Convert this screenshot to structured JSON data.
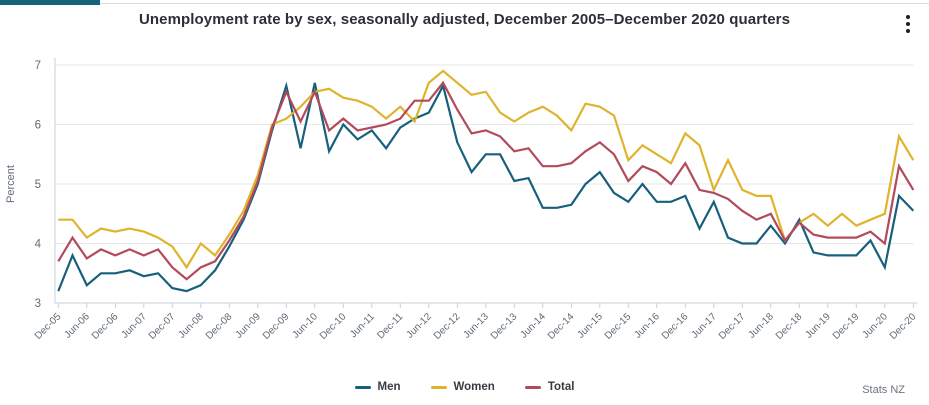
{
  "header": {
    "title": "Unemployment rate by sex, seasonally adjusted, December 2005–December 2020 quarters"
  },
  "branding": {
    "footer_text": "Stats NZ"
  },
  "colors": {
    "accent_bar": "#156378",
    "men_line": "#17607d",
    "women_line": "#e0b32d",
    "total_line": "#b34a5c",
    "gridline": "#e7e7ea",
    "axis_line": "#c7d0dd",
    "tick_label": "#5f6a76",
    "title_text": "#2e2e38"
  },
  "chart_data": {
    "type": "line",
    "title": "Unemployment rate by sex, seasonally adjusted, December 2005–December 2020 quarters",
    "xlabel": "",
    "ylabel": "Percent",
    "ylim": [
      3,
      7
    ],
    "yticks": [
      3,
      4,
      5,
      6,
      7
    ],
    "grid": "horizontal",
    "legend_position": "bottom",
    "tick_every": 2,
    "x_tick_labels": [
      "Dec-05",
      "Jun-06",
      "Dec-06",
      "Jun-07",
      "Dec-07",
      "Jun-08",
      "Dec-08",
      "Jun-09",
      "Dec-09",
      "Jun-10",
      "Dec-10",
      "Jun-11",
      "Dec-11",
      "Jun-12",
      "Dec-12",
      "Jun-13",
      "Dec-13",
      "Jun-14",
      "Dec-14",
      "Jun-15",
      "Dec-15",
      "Jun-16",
      "Dec-16",
      "Jun-17",
      "Dec-17",
      "Jun-18",
      "Dec-18",
      "Jun-19",
      "Dec-19",
      "Jun-20",
      "Dec-20"
    ],
    "categories": [
      "Dec-05",
      "Mar-06",
      "Jun-06",
      "Sep-06",
      "Dec-06",
      "Mar-07",
      "Jun-07",
      "Sep-07",
      "Dec-07",
      "Mar-08",
      "Jun-08",
      "Sep-08",
      "Dec-08",
      "Mar-09",
      "Jun-09",
      "Sep-09",
      "Dec-09",
      "Mar-10",
      "Jun-10",
      "Sep-10",
      "Dec-10",
      "Mar-11",
      "Jun-11",
      "Sep-11",
      "Dec-11",
      "Mar-12",
      "Jun-12",
      "Sep-12",
      "Dec-12",
      "Mar-13",
      "Jun-13",
      "Sep-13",
      "Dec-13",
      "Mar-14",
      "Jun-14",
      "Sep-14",
      "Dec-14",
      "Mar-15",
      "Jun-15",
      "Sep-15",
      "Dec-15",
      "Mar-16",
      "Jun-16",
      "Sep-16",
      "Dec-16",
      "Mar-17",
      "Jun-17",
      "Sep-17",
      "Dec-17",
      "Mar-18",
      "Jun-18",
      "Sep-18",
      "Dec-18",
      "Mar-19",
      "Jun-19",
      "Sep-19",
      "Dec-19",
      "Mar-20",
      "Jun-20",
      "Sep-20",
      "Dec-20"
    ],
    "series": [
      {
        "name": "Men",
        "color": "#17607d",
        "values": [
          3.2,
          3.8,
          3.3,
          3.5,
          3.5,
          3.55,
          3.45,
          3.5,
          3.25,
          3.2,
          3.3,
          3.55,
          3.95,
          4.4,
          5.0,
          5.9,
          6.65,
          5.6,
          6.7,
          5.55,
          6.0,
          5.75,
          5.9,
          5.6,
          5.95,
          6.1,
          6.2,
          6.65,
          5.7,
          5.2,
          5.5,
          5.5,
          5.05,
          5.1,
          4.6,
          4.6,
          4.65,
          5.0,
          5.2,
          4.85,
          4.7,
          5.0,
          4.7,
          4.7,
          4.8,
          4.25,
          4.7,
          4.1,
          4.0,
          4.0,
          4.3,
          4.0,
          4.4,
          3.85,
          3.8,
          3.8,
          3.8,
          4.05,
          3.6,
          4.8,
          4.55
        ]
      },
      {
        "name": "Women",
        "color": "#e0b32d",
        "values": [
          4.4,
          4.4,
          4.1,
          4.25,
          4.2,
          4.25,
          4.2,
          4.1,
          3.95,
          3.6,
          4.0,
          3.8,
          4.15,
          4.55,
          5.15,
          6.0,
          6.1,
          6.3,
          6.55,
          6.6,
          6.45,
          6.4,
          6.3,
          6.1,
          6.3,
          6.05,
          6.7,
          6.9,
          6.7,
          6.5,
          6.55,
          6.2,
          6.05,
          6.2,
          6.3,
          6.15,
          5.9,
          6.35,
          6.3,
          6.15,
          5.4,
          5.65,
          5.5,
          5.35,
          5.85,
          5.65,
          4.9,
          5.4,
          4.9,
          4.8,
          4.8,
          4.05,
          4.35,
          4.5,
          4.3,
          4.5,
          4.3,
          4.4,
          4.5,
          5.8,
          5.4
        ]
      },
      {
        "name": "Total",
        "color": "#b34a5c",
        "values": [
          3.7,
          4.1,
          3.75,
          3.9,
          3.8,
          3.9,
          3.8,
          3.9,
          3.6,
          3.4,
          3.6,
          3.7,
          4.05,
          4.45,
          5.05,
          5.95,
          6.55,
          6.05,
          6.55,
          5.9,
          6.1,
          5.9,
          5.95,
          6.0,
          6.1,
          6.4,
          6.4,
          6.7,
          6.25,
          5.85,
          5.9,
          5.8,
          5.55,
          5.6,
          5.3,
          5.3,
          5.35,
          5.55,
          5.7,
          5.5,
          5.05,
          5.3,
          5.2,
          5.0,
          5.35,
          4.9,
          4.85,
          4.75,
          4.55,
          4.4,
          4.5,
          4.05,
          4.35,
          4.15,
          4.1,
          4.1,
          4.1,
          4.2,
          4.0,
          5.3,
          4.9
        ]
      }
    ]
  }
}
